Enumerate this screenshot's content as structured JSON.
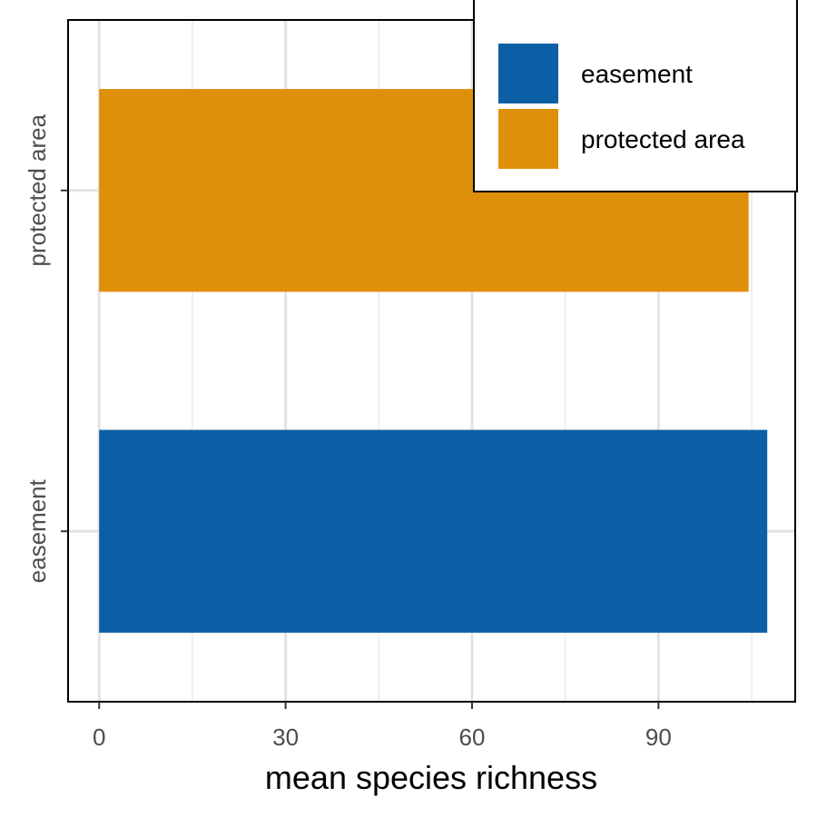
{
  "chart_data": {
    "type": "bar",
    "orientation": "horizontal",
    "categories": [
      "easement",
      "protected area"
    ],
    "values": [
      107.5,
      104.5
    ],
    "colors": [
      "#0b5fa5",
      "#df8f09"
    ],
    "xlabel": "mean species richness",
    "ylabel": "",
    "xlim": [
      -5,
      112
    ],
    "x_ticks": [
      0,
      30,
      60,
      90
    ],
    "x_minor_ticks": [
      15,
      45,
      75,
      105
    ],
    "grid": true,
    "legend": {
      "position": "top-right",
      "entries": [
        {
          "label": "easement",
          "color": "#0b5fa5"
        },
        {
          "label": "protected area",
          "color": "#df8f09"
        }
      ]
    }
  }
}
